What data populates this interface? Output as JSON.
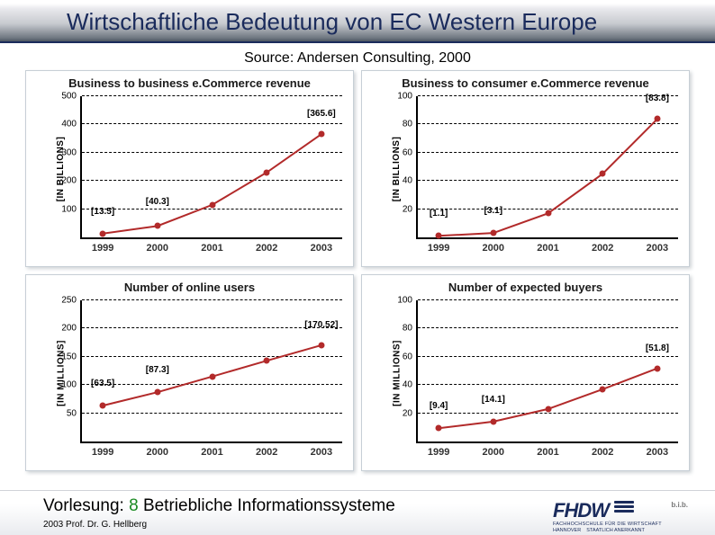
{
  "title": "Wirtschaftliche Bedeutung von EC Western Europe",
  "source_line": "Source: Andersen Consulting, 2000",
  "footer": {
    "lecture_prefix": "Vorlesung:",
    "lecture_num": "8",
    "lecture_title": "Betriebliche Informationssysteme",
    "credit": "2003 Prof. Dr. G. Hellberg",
    "logo_text": "FHDW",
    "logo_sub1": "FACHHOCHSCHULE FÜR DIE WIRTSCHAFT",
    "logo_sub2": "HANNOVER",
    "logo_sub3": "STAATLICH ANERKANNT",
    "bib": "b.i.b."
  },
  "panels": [
    {
      "title": "Business to business e.Commerce revenue",
      "ylabel": "[IN BILLIONS]",
      "ylim": [
        0,
        500
      ],
      "ytick_step": 100,
      "categories": [
        "1999",
        "2000",
        "2001",
        "2002",
        "2003"
      ],
      "values": [
        13.5,
        40.3,
        115,
        230,
        365.6
      ],
      "series_color": "#b22a2a",
      "annotations": [
        {
          "i": 0,
          "text": "[13.5]",
          "dy": -8
        },
        {
          "i": 1,
          "text": "[40.3]",
          "dy": -10
        },
        {
          "i": 4,
          "text": "[365.6]",
          "dy": -6
        }
      ]
    },
    {
      "title": "Business to consumer e.Commerce revenue",
      "ylabel": "[IN BILLIONS]",
      "ylim": [
        0,
        100
      ],
      "ytick_step": 20,
      "categories": [
        "1999",
        "2000",
        "2001",
        "2002",
        "2003"
      ],
      "values": [
        1.1,
        3.1,
        17,
        45,
        83.8
      ],
      "series_color": "#b22a2a",
      "annotations": [
        {
          "i": 0,
          "text": "[1.1]",
          "dy": -8
        },
        {
          "i": 1,
          "text": "[3.1]",
          "dy": -8
        },
        {
          "i": 4,
          "text": "[83.8]",
          "dy": -6
        }
      ]
    },
    {
      "title": "Number of online users",
      "ylabel": "[IN MILLIONS]",
      "ylim": [
        0,
        250
      ],
      "ytick_step": 50,
      "categories": [
        "1999",
        "2000",
        "2001",
        "2002",
        "2003"
      ],
      "values": [
        63.5,
        87.3,
        115,
        143,
        170.52
      ],
      "series_color": "#b22a2a",
      "annotations": [
        {
          "i": 0,
          "text": "[63.5]",
          "dy": -8
        },
        {
          "i": 1,
          "text": "[87.3]",
          "dy": -8
        },
        {
          "i": 4,
          "text": "[170.52]",
          "dy": -6
        }
      ]
    },
    {
      "title": "Number of expected buyers",
      "ylabel": "[IN MILLIONS]",
      "ylim": [
        0,
        100
      ],
      "ytick_step": 20,
      "categories": [
        "1999",
        "2000",
        "2001",
        "2002",
        "2003"
      ],
      "values": [
        9.4,
        14.1,
        23,
        37,
        51.8
      ],
      "series_color": "#b22a2a",
      "annotations": [
        {
          "i": 0,
          "text": "[9.4]",
          "dy": -8
        },
        {
          "i": 1,
          "text": "[14.1]",
          "dy": -8
        },
        {
          "i": 4,
          "text": "[51.8]",
          "dy": -6
        }
      ]
    }
  ],
  "style": {
    "grid_color": "#000000",
    "axis_color": "#000000",
    "panel_border": "#c7cfd6",
    "title_fontsize": 26,
    "panel_title_fontsize": 13,
    "tick_fontsize": 10,
    "point_radius": 3.5,
    "line_width": 2
  }
}
